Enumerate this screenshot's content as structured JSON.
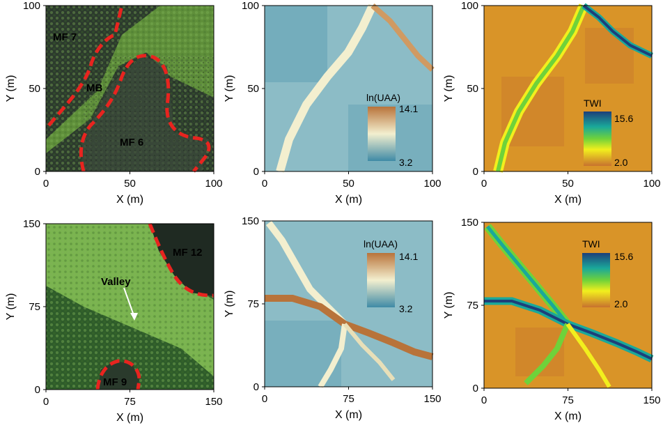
{
  "colors": {
    "uaa_high": "#b8733a",
    "uaa_mid": "#f3efcf",
    "uaa_low": "#3f8aa6",
    "twi_high": "#1d3f7a",
    "twi_mid1": "#1aa89a",
    "twi_mid2": "#6fd23a",
    "twi_mid3": "#f2ef1d",
    "twi_low": "#c8722e",
    "boundary": "#e8241f",
    "canopy": "#5f8f3a",
    "mature_forest": "#243126"
  },
  "panels": [
    {
      "row": "top",
      "photo": {
        "labels": [
          "MF 7",
          "MB",
          "MF 6"
        ]
      },
      "uaa": {
        "legend_title": "ln(UAA)",
        "legend_max": "14.1",
        "legend_min": "3.2"
      },
      "twi": {
        "legend_title": "TWI",
        "legend_max": "15.6",
        "legend_min": "2.0"
      }
    },
    {
      "row": "bottom",
      "photo": {
        "labels": [
          "MF 12",
          "Valley",
          "MF 9"
        ]
      },
      "uaa": {
        "legend_title": "ln(UAA)",
        "legend_max": "14.1",
        "legend_min": "3.2"
      },
      "twi": {
        "legend_title": "TWI",
        "legend_max": "15.6",
        "legend_min": "2.0"
      }
    }
  ],
  "chart_data": [
    {
      "type": "heatmap",
      "panel": "top-left",
      "content": "aerial photo",
      "xlabel": "X (m)",
      "ylabel": "Y (m)",
      "xlim": [
        0,
        100
      ],
      "ylim": [
        0,
        100
      ],
      "xticks": [
        "0",
        "50",
        "100"
      ],
      "yticks": [
        "0",
        "50",
        "100"
      ]
    },
    {
      "type": "heatmap",
      "panel": "top-middle",
      "variable": "ln(UAA)",
      "xlabel": "X (m)",
      "ylabel": "Y (m)",
      "xlim": [
        0,
        100
      ],
      "ylim": [
        0,
        100
      ],
      "xticks": [
        "0",
        "50",
        "100"
      ],
      "yticks": [
        "0",
        "50",
        "100"
      ],
      "color_range": [
        3.2,
        14.1
      ]
    },
    {
      "type": "heatmap",
      "panel": "top-right",
      "variable": "TWI",
      "xlabel": "X (m)",
      "ylabel": "Y (m)",
      "xlim": [
        0,
        100
      ],
      "ylim": [
        0,
        100
      ],
      "xticks": [
        "0",
        "50",
        "100"
      ],
      "yticks": [
        "0",
        "50",
        "100"
      ],
      "color_range": [
        2.0,
        15.6
      ]
    },
    {
      "type": "heatmap",
      "panel": "bottom-left",
      "content": "aerial photo",
      "xlabel": "X (m)",
      "ylabel": "Y (m)",
      "xlim": [
        0,
        150
      ],
      "ylim": [
        0,
        150
      ],
      "xticks": [
        "0",
        "75",
        "150"
      ],
      "yticks": [
        "0",
        "75",
        "150"
      ]
    },
    {
      "type": "heatmap",
      "panel": "bottom-middle",
      "variable": "ln(UAA)",
      "xlabel": "X (m)",
      "ylabel": "Y (m)",
      "xlim": [
        0,
        150
      ],
      "ylim": [
        0,
        150
      ],
      "xticks": [
        "0",
        "75",
        "150"
      ],
      "yticks": [
        "0",
        "75",
        "150"
      ],
      "color_range": [
        3.2,
        14.1
      ]
    },
    {
      "type": "heatmap",
      "panel": "bottom-right",
      "variable": "TWI",
      "xlabel": "X (m)",
      "ylabel": "Y (m)",
      "xlim": [
        0,
        150
      ],
      "ylim": [
        0,
        150
      ],
      "xticks": [
        "0",
        "75",
        "150"
      ],
      "yticks": [
        "0",
        "75",
        "150"
      ],
      "color_range": [
        2.0,
        15.6
      ]
    }
  ]
}
